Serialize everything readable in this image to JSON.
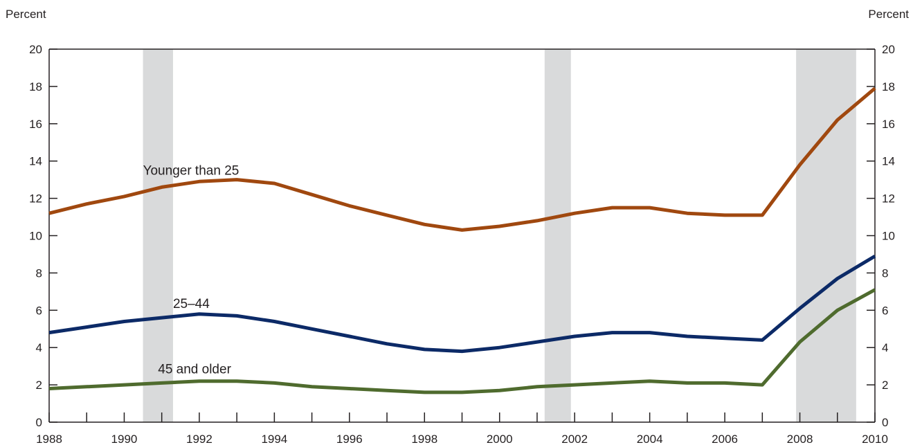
{
  "chart_data": {
    "type": "line",
    "title": "",
    "xlabel": "",
    "ylabel_left": "Percent",
    "ylabel_right": "Percent",
    "xlim": [
      1988,
      2010
    ],
    "ylim": [
      0,
      20
    ],
    "x_ticks": [
      1988,
      1990,
      1992,
      1994,
      1996,
      1998,
      2000,
      2002,
      2004,
      2006,
      2008,
      2010
    ],
    "y_ticks": [
      0,
      2,
      4,
      6,
      8,
      10,
      12,
      14,
      16,
      18,
      20
    ],
    "x_tick_labels": [
      "1988",
      "1990",
      "1992",
      "1994",
      "1996",
      "1998",
      "2000",
      "2002",
      "2004",
      "2006",
      "2008",
      "2010"
    ],
    "y_tick_labels": [
      "0",
      "2",
      "4",
      "6",
      "8",
      "10",
      "12",
      "14",
      "16",
      "18",
      "20"
    ],
    "grid": false,
    "legend": "none",
    "recession_shading": [
      {
        "start": 1990.5,
        "end": 1991.3
      },
      {
        "start": 2001.2,
        "end": 2001.9
      },
      {
        "start": 2007.9,
        "end": 2009.5
      }
    ],
    "shading_color": "#d9dadb",
    "x": [
      1988,
      1989,
      1990,
      1991,
      1992,
      1993,
      1994,
      1995,
      1996,
      1997,
      1998,
      1999,
      2000,
      2001,
      2002,
      2003,
      2004,
      2005,
      2006,
      2007,
      2008,
      2009,
      2010
    ],
    "series": [
      {
        "name": "Younger than 25",
        "color": "#a0480f",
        "values": [
          11.2,
          11.7,
          12.1,
          12.6,
          12.9,
          13.0,
          12.8,
          12.2,
          11.6,
          11.1,
          10.6,
          10.3,
          10.5,
          10.8,
          11.2,
          11.5,
          11.5,
          11.2,
          11.1,
          11.1,
          13.8,
          16.2,
          17.9
        ]
      },
      {
        "name": "25–44",
        "color": "#0c2a67",
        "values": [
          4.8,
          5.1,
          5.4,
          5.6,
          5.8,
          5.7,
          5.4,
          5.0,
          4.6,
          4.2,
          3.9,
          3.8,
          4.0,
          4.3,
          4.6,
          4.8,
          4.8,
          4.6,
          4.5,
          4.4,
          6.1,
          7.7,
          8.9
        ]
      },
      {
        "name": "45 and older",
        "color": "#4f6b2e",
        "values": [
          1.8,
          1.9,
          2.0,
          2.1,
          2.2,
          2.2,
          2.1,
          1.9,
          1.8,
          1.7,
          1.6,
          1.6,
          1.7,
          1.9,
          2.0,
          2.1,
          2.2,
          2.1,
          2.1,
          2.0,
          4.3,
          6.0,
          7.1
        ]
      }
    ],
    "annotations": [
      {
        "text": "Younger than 25",
        "series": 0
      },
      {
        "text": "25–44",
        "series": 1
      },
      {
        "text": "45 and older",
        "series": 2
      }
    ]
  }
}
